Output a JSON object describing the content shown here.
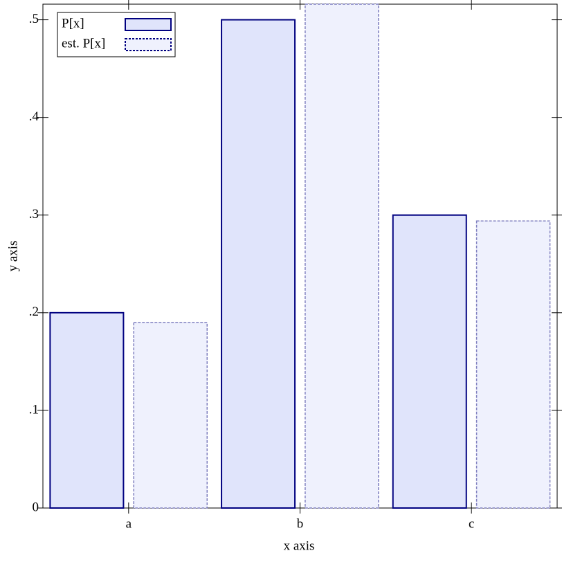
{
  "chart_data": {
    "type": "bar",
    "xlabel": "x axis",
    "ylabel": "y axis",
    "categories": [
      "a",
      "b",
      "c"
    ],
    "series": [
      {
        "name": "P[x]",
        "color": "#e0e4fb",
        "stroke": "#000080",
        "dash": false,
        "values": [
          0.2,
          0.5,
          0.3
        ]
      },
      {
        "name": "est. P[x]",
        "color": "#eff1fd",
        "stroke": "#7f7fbf",
        "dash": true,
        "values": [
          0.19,
          0.516,
          0.294
        ]
      }
    ],
    "ylim": [
      0,
      0.516
    ],
    "yticks": [
      0,
      {
        "value": 0.1,
        "label": ".1"
      },
      {
        "value": 0.2,
        "label": ".2"
      },
      {
        "value": 0.3,
        "label": ".3"
      },
      {
        "value": 0.4,
        "label": ".4"
      },
      {
        "value": 0.5,
        "label": ".5"
      }
    ],
    "legend": "top-left"
  }
}
